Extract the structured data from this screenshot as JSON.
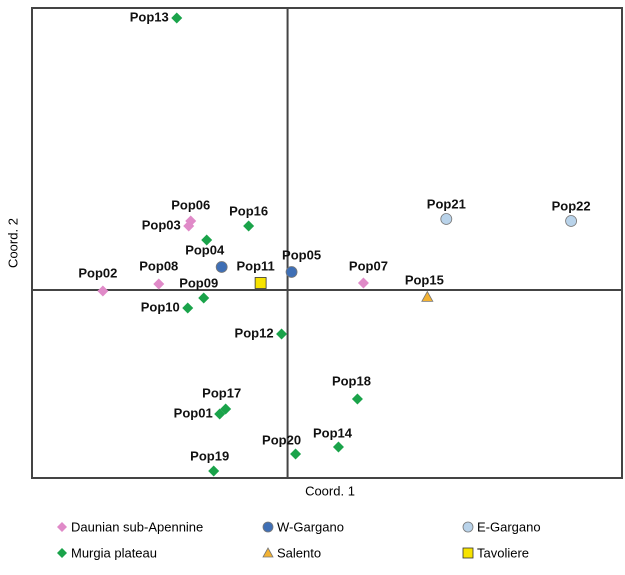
{
  "chart_data": {
    "type": "scatter",
    "x_label": "Coord. 1",
    "y_label": "Coord. 2",
    "xlim": [
      -0.512,
      0.67
    ],
    "ylim": [
      -0.376,
      0.564
    ],
    "series": [
      {
        "name": "Daunian sub-Apennine",
        "color": "#e08ac8",
        "marker": "diamond",
        "labels": [
          "Pop06",
          "Pop03",
          "Pop08",
          "Pop02",
          "Pop07"
        ],
        "x": [
          -0.194,
          -0.198,
          -0.258,
          -0.37,
          0.152
        ],
        "y": [
          0.138,
          0.128,
          0.012,
          -0.002,
          0.014
        ]
      },
      {
        "name": "W-Gargano",
        "color": "#3f6fb5",
        "marker": "circle",
        "labels": [
          null,
          "Pop05"
        ],
        "x": [
          -0.132,
          0.008
        ],
        "y": [
          0.046,
          0.036
        ]
      },
      {
        "name": "E-Gargano",
        "color": "#b9d3ea",
        "marker": "circle",
        "labels": [
          "Pop21",
          "Pop22"
        ],
        "x": [
          0.318,
          0.568
        ],
        "y": [
          0.142,
          0.138
        ]
      },
      {
        "name": "Murgia plateau",
        "color": "#1aa34a",
        "marker": "diamond",
        "labels": [
          "Pop13",
          "Pop16",
          "Pop04",
          "Pop09",
          "Pop10",
          "Pop12",
          "Pop17",
          "Pop01",
          "Pop18",
          "Pop14",
          "Pop20",
          "Pop19"
        ],
        "x": [
          -0.222,
          -0.078,
          -0.162,
          -0.168,
          -0.2,
          -0.012,
          -0.124,
          -0.136,
          0.14,
          0.102,
          0.016,
          -0.148
        ],
        "y": [
          0.544,
          0.128,
          0.1,
          -0.016,
          -0.036,
          -0.088,
          -0.238,
          -0.248,
          -0.218,
          -0.314,
          -0.328,
          -0.362
        ]
      },
      {
        "name": "Salento",
        "color": "#f2b233",
        "marker": "triangle",
        "labels": [
          "Pop15"
        ],
        "x": [
          0.28
        ],
        "y": [
          -0.014
        ]
      },
      {
        "name": "Tavoliere",
        "color": "#f7e300",
        "marker": "square",
        "labels": [
          "Pop11"
        ],
        "x": [
          -0.054
        ],
        "y": [
          0.014
        ]
      }
    ]
  }
}
